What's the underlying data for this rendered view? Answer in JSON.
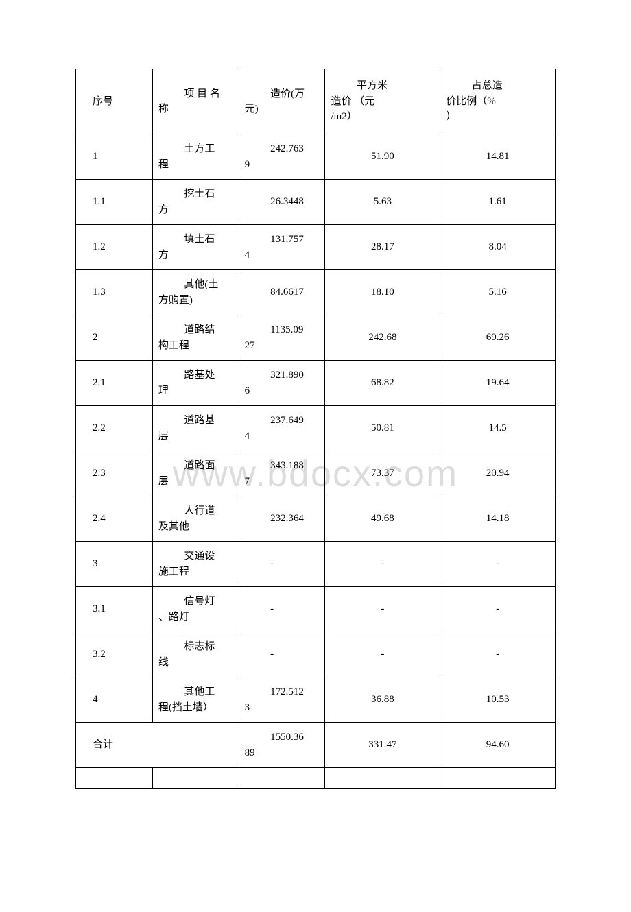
{
  "table": {
    "background_color": "#ffffff",
    "border_color": "#000000",
    "font_family": "SimSun",
    "font_size": 15,
    "watermark_text": "www.bdocx.com",
    "watermark_color": "#dcdcdc",
    "columns": {
      "col1_header": "序号",
      "col2_header_line1": "项 目 名",
      "col2_header_line2": "称",
      "col3_header_line1": "造价(万",
      "col3_header_line2": "元)",
      "col4_header_line1": "平方米",
      "col4_header_line2": "造价 （元",
      "col4_header_line3": "/m2）",
      "col5_header_line1": "占总造",
      "col5_header_line2": "价比例（%",
      "col5_header_line3": "）"
    },
    "rows": [
      {
        "num": "1",
        "name_l1": "土方工",
        "name_l2": "程",
        "cost_l1": "242.763",
        "cost_l2": "9",
        "sqm": "51.90",
        "pct": "14.81"
      },
      {
        "num": "1.1",
        "name_l1": "挖土石",
        "name_l2": "方",
        "cost_l1": "26.3448",
        "cost_l2": "",
        "sqm": "5.63",
        "pct": "1.61"
      },
      {
        "num": "1.2",
        "name_l1": "填土石",
        "name_l2": "方",
        "cost_l1": "131.757",
        "cost_l2": "4",
        "sqm": "28.17",
        "pct": "8.04"
      },
      {
        "num": "1.3",
        "name_l1": "其他(土",
        "name_l2": "方购置)",
        "cost_l1": "84.6617",
        "cost_l2": "",
        "sqm": "18.10",
        "pct": "5.16"
      },
      {
        "num": "2",
        "name_l1": "道路结",
        "name_l2": "构工程",
        "cost_l1": "1135.09",
        "cost_l2": "27",
        "sqm": "242.68",
        "pct": "69.26"
      },
      {
        "num": "2.1",
        "name_l1": "路基处",
        "name_l2": "理",
        "cost_l1": "321.890",
        "cost_l2": "6",
        "sqm": "68.82",
        "pct": "19.64"
      },
      {
        "num": "2.2",
        "name_l1": "道路基",
        "name_l2": "层",
        "cost_l1": "237.649",
        "cost_l2": "4",
        "sqm": "50.81",
        "pct": "14.5"
      },
      {
        "num": "2.3",
        "name_l1": "道路面",
        "name_l2": "层",
        "cost_l1": "343.188",
        "cost_l2": "7",
        "sqm": "73.37",
        "pct": "20.94"
      },
      {
        "num": "2.4",
        "name_l1": "人行道",
        "name_l2": "及其他",
        "cost_l1": "232.364",
        "cost_l2": "",
        "sqm": "49.68",
        "pct": "14.18"
      },
      {
        "num": "3",
        "name_l1": "交通设",
        "name_l2": "施工程",
        "cost_l1": "-",
        "cost_l2": "",
        "sqm": "-",
        "pct": "-"
      },
      {
        "num": "3.1",
        "name_l1": "信号灯",
        "name_l2": "、路灯",
        "cost_l1": "-",
        "cost_l2": "",
        "sqm": "-",
        "pct": "-"
      },
      {
        "num": "3.2",
        "name_l1": "标志标",
        "name_l2": "线",
        "cost_l1": "-",
        "cost_l2": "",
        "sqm": "-",
        "pct": "-"
      },
      {
        "num": "4",
        "name_l1": "其他工",
        "name_l2": "程(挡土墙）",
        "cost_l1": "172.512",
        "cost_l2": "3",
        "sqm": "36.88",
        "pct": "10.53"
      }
    ],
    "total_row": {
      "label": "合计",
      "cost_l1": "1550.36",
      "cost_l2": "89",
      "sqm": "331.47",
      "pct": "94.60"
    }
  }
}
